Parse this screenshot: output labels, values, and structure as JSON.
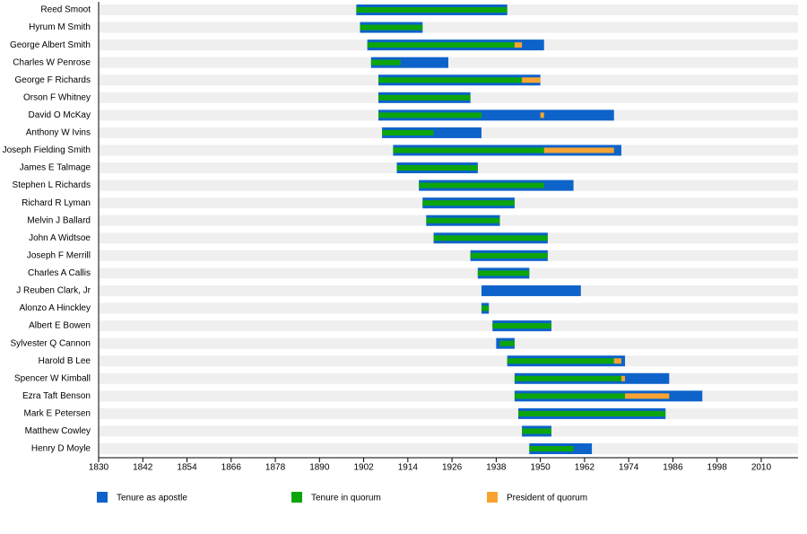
{
  "chart_data": {
    "type": "timeline",
    "categories": [
      "Reed Smoot",
      "Hyrum M Smith",
      "George Albert Smith",
      "Charles W Penrose",
      "George F Richards",
      "Orson F Whitney",
      "David O McKay",
      "Anthony W Ivins",
      "Joseph Fielding Smith",
      "James E Talmage",
      "Stephen L Richards",
      "Richard R Lyman",
      "Melvin J Ballard",
      "John A Widtsoe",
      "Joseph F Merrill",
      "Charles A Callis",
      "J Reuben Clark, Jr",
      "Alonzo A Hinckley",
      "Albert E Bowen",
      "Sylvester Q Cannon",
      "Harold B Lee",
      "Spencer W Kimball",
      "Ezra Taft Benson",
      "Mark E Petersen",
      "Matthew Cowley",
      "Henry D Moyle"
    ],
    "series": [
      {
        "name": "Tenure as apostle",
        "color": "#0d63c9",
        "values": [
          [
            [
              1900,
              1941
            ]
          ],
          [
            [
              1901,
              1918
            ]
          ],
          [
            [
              1903,
              1951
            ]
          ],
          [
            [
              1904,
              1925
            ]
          ],
          [
            [
              1906,
              1950
            ]
          ],
          [
            [
              1906,
              1931
            ]
          ],
          [
            [
              1906,
              1970
            ]
          ],
          [
            [
              1907,
              1934
            ]
          ],
          [
            [
              1910,
              1972
            ]
          ],
          [
            [
              1911,
              1933
            ]
          ],
          [
            [
              1917,
              1959
            ]
          ],
          [
            [
              1918,
              1943
            ]
          ],
          [
            [
              1919,
              1939
            ]
          ],
          [
            [
              1921,
              1952
            ]
          ],
          [
            [
              1931,
              1952
            ]
          ],
          [
            [
              1933,
              1947
            ]
          ],
          [
            [
              1934,
              1961
            ]
          ],
          [
            [
              1934,
              1936
            ]
          ],
          [
            [
              1937,
              1953
            ]
          ],
          [
            [
              1938,
              1943
            ]
          ],
          [
            [
              1941,
              1973
            ]
          ],
          [
            [
              1943,
              1985
            ]
          ],
          [
            [
              1943,
              1994
            ]
          ],
          [
            [
              1944,
              1984
            ]
          ],
          [
            [
              1945,
              1953
            ]
          ],
          [
            [
              1947,
              1964
            ]
          ]
        ]
      },
      {
        "name": "Tenure in quorum",
        "color": "#0ca50c",
        "values": [
          [
            [
              1900,
              1941
            ]
          ],
          [
            [
              1901,
              1918
            ]
          ],
          [
            [
              1903,
              1943
            ]
          ],
          [
            [
              1904,
              1912
            ]
          ],
          [
            [
              1906,
              1945
            ]
          ],
          [
            [
              1906,
              1931
            ]
          ],
          [
            [
              1906,
              1934
            ]
          ],
          [
            [
              1907,
              1921
            ]
          ],
          [
            [
              1910,
              1951
            ]
          ],
          [
            [
              1911,
              1933
            ]
          ],
          [
            [
              1917,
              1951
            ]
          ],
          [
            [
              1918,
              1943
            ]
          ],
          [
            [
              1919,
              1939
            ]
          ],
          [
            [
              1921,
              1952
            ]
          ],
          [
            [
              1931,
              1952
            ]
          ],
          [
            [
              1933,
              1947
            ]
          ],
          [],
          [
            [
              1934,
              1936
            ]
          ],
          [
            [
              1937,
              1953
            ]
          ],
          [
            [
              1939,
              1943
            ]
          ],
          [
            [
              1941,
              1970
            ]
          ],
          [
            [
              1943,
              1972
            ]
          ],
          [
            [
              1943,
              1973
            ]
          ],
          [
            [
              1944,
              1984
            ]
          ],
          [
            [
              1945,
              1953
            ]
          ],
          [
            [
              1947,
              1959
            ]
          ]
        ]
      },
      {
        "name": "President of quorum",
        "color": "#f8a332",
        "values": [
          [],
          [],
          [
            [
              1943,
              1945
            ]
          ],
          [],
          [
            [
              1945,
              1950
            ]
          ],
          [],
          [
            [
              1950,
              1951
            ]
          ],
          [],
          [
            [
              1951,
              1970
            ]
          ],
          [],
          [],
          [],
          [],
          [],
          [],
          [],
          [],
          [],
          [],
          [],
          [
            [
              1970,
              1972
            ]
          ],
          [
            [
              1972,
              1973
            ]
          ],
          [
            [
              1973,
              1985
            ]
          ],
          [],
          [],
          []
        ]
      }
    ],
    "xlim": [
      1830,
      2020
    ],
    "xticks": [
      1830,
      1842,
      1854,
      1866,
      1878,
      1890,
      1902,
      1914,
      1926,
      1938,
      1950,
      1962,
      1974,
      1986,
      1998,
      2010
    ]
  }
}
